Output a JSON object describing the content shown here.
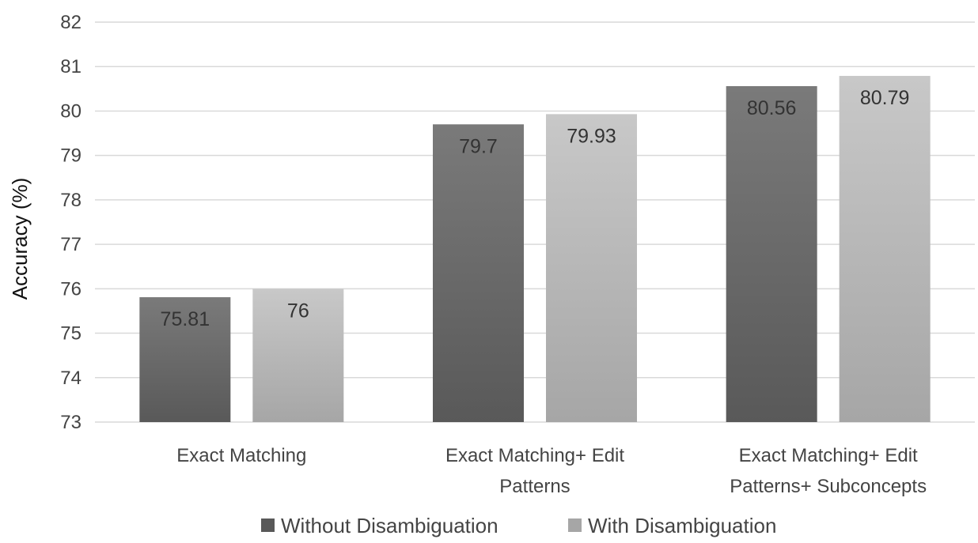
{
  "chart_data": {
    "type": "bar",
    "title": "",
    "xlabel": "",
    "ylabel": "Accuracy (%)",
    "ylim": [
      73,
      82
    ],
    "yticks": [
      73,
      74,
      75,
      76,
      77,
      78,
      79,
      80,
      81,
      82
    ],
    "grid": true,
    "legend_position": "bottom",
    "categories": [
      [
        "Exact Matching"
      ],
      [
        "Exact Matching+ Edit",
        "Patterns"
      ],
      [
        "Exact Matching+ Edit",
        "Patterns+ Subconcepts"
      ]
    ],
    "series": [
      {
        "name": "Without Disambiguation",
        "color": "#595959",
        "color_light": "#7a7a7a",
        "values": [
          75.81,
          79.7,
          80.56
        ],
        "labels": [
          "75.81",
          "79.7",
          "80.56"
        ]
      },
      {
        "name": "With Disambiguation",
        "color": "#a6a6a6",
        "color_light": "#c8c8c8",
        "values": [
          76,
          79.93,
          80.79
        ],
        "labels": [
          "76",
          "79.93",
          "80.79"
        ]
      }
    ]
  }
}
